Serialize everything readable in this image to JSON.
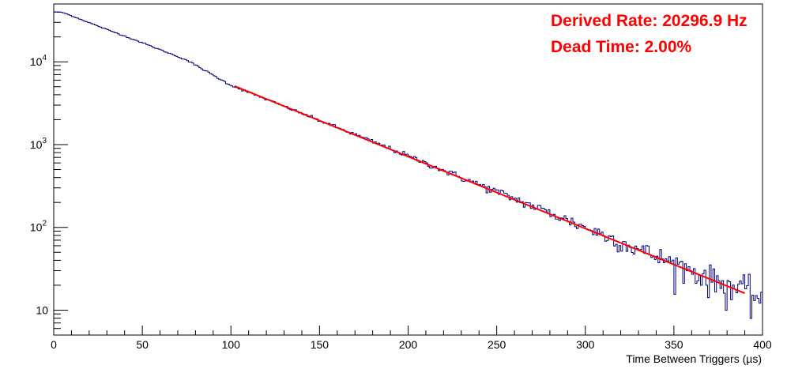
{
  "chart_data": {
    "type": "line",
    "title": "",
    "xlabel": "Time Between Triggers (µs)",
    "ylabel": "",
    "xlim": [
      0,
      400
    ],
    "ylim": [
      5,
      50000
    ],
    "y_scale": "log",
    "grid": false,
    "x_ticks": [
      "0",
      "50",
      "100",
      "150",
      "200",
      "250",
      "300",
      "350",
      "400"
    ],
    "y_ticks": [
      {
        "value": 10,
        "label": "10"
      },
      {
        "value": 100,
        "label": "10",
        "exp": "2"
      },
      {
        "value": 1000,
        "label": "10",
        "exp": "3"
      },
      {
        "value": 10000,
        "label": "10",
        "exp": "4"
      }
    ],
    "annotations": [
      "Derived Rate: 20296.9 Hz",
      "Dead Time: 2.00%"
    ],
    "series": [
      {
        "kind": "histogram",
        "color": "#000080",
        "bin_width": 1,
        "x": [
          0,
          5,
          10,
          25,
          50,
          75,
          100,
          125,
          150,
          175,
          200,
          225,
          250,
          275,
          300,
          325,
          350,
          375,
          390,
          400
        ],
        "y": [
          40000,
          39500,
          36000,
          27000,
          17000,
          10500,
          5200,
          3200,
          1950,
          1200,
          730,
          440,
          270,
          165,
          100,
          60,
          37,
          22,
          17,
          14
        ]
      },
      {
        "kind": "fit",
        "color": "#ff0000",
        "x": [
          102,
          390
        ],
        "y": [
          5100,
          16
        ]
      }
    ]
  }
}
